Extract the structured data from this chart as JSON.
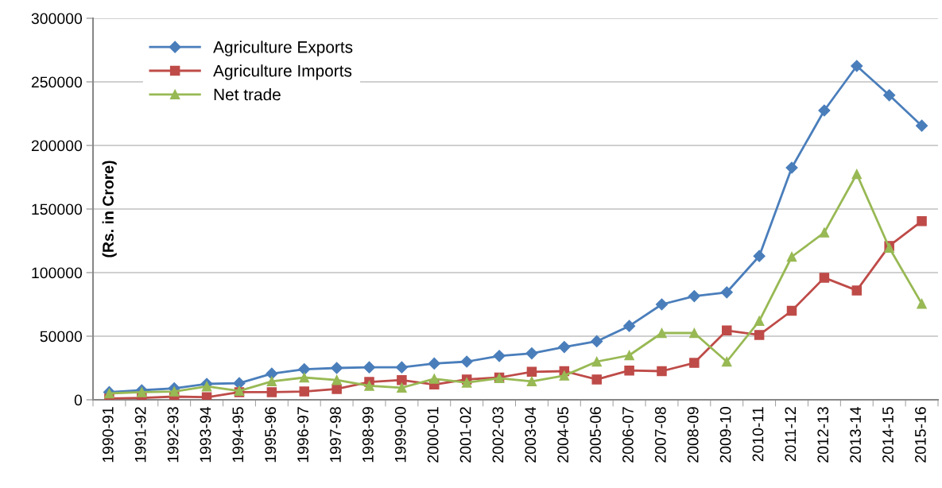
{
  "chart_data": {
    "type": "line",
    "ylabel": "(Rs. in Crore)",
    "categories": [
      "1990-91",
      "1991-92",
      "1992-93",
      "1993-94",
      "1994-95",
      "1995-96",
      "1996-97",
      "1997-98",
      "1998-99",
      "1999-00",
      "2000-01",
      "2001-02",
      "2002-03",
      "2003-04",
      "2004-05",
      "2005-06",
      "2006-07",
      "2007-08",
      "2008-09",
      "2009-10",
      "2010-11",
      "2011-12",
      "2012-13",
      "2013-14",
      "2014-15",
      "2015-16"
    ],
    "series": [
      {
        "name": "Agriculture Exports",
        "color": "#4a7ebb",
        "marker": "diamond",
        "values": [
          6000,
          7500,
          9000,
          12500,
          13000,
          20500,
          24000,
          25000,
          25500,
          25500,
          28500,
          30000,
          34500,
          36500,
          41500,
          46000,
          58000,
          75000,
          81500,
          84500,
          113000,
          182500,
          227500,
          262500,
          239500,
          215500
        ]
      },
      {
        "name": "Agriculture Imports",
        "color": "#be4b48",
        "marker": "square",
        "values": [
          1000,
          1500,
          2500,
          2000,
          6000,
          6000,
          6500,
          8500,
          14000,
          15500,
          12000,
          16000,
          17500,
          22000,
          22500,
          16000,
          23000,
          22500,
          29000,
          54500,
          51000,
          70000,
          96000,
          86000,
          121000,
          140500
        ]
      },
      {
        "name": "Net trade",
        "color": "#98b954",
        "marker": "triangle",
        "values": [
          5000,
          6000,
          6500,
          10500,
          7000,
          14500,
          17500,
          15500,
          11000,
          9500,
          16500,
          13500,
          17000,
          14500,
          19000,
          30000,
          35000,
          52500,
          52500,
          30000,
          62000,
          112500,
          131500,
          177500,
          119500,
          75500
        ]
      }
    ],
    "ylim": [
      0,
      300000
    ],
    "yticks": [
      0,
      50000,
      100000,
      150000,
      200000,
      250000,
      300000
    ],
    "grid": "y",
    "legend": "top left",
    "line_style": "solid"
  }
}
